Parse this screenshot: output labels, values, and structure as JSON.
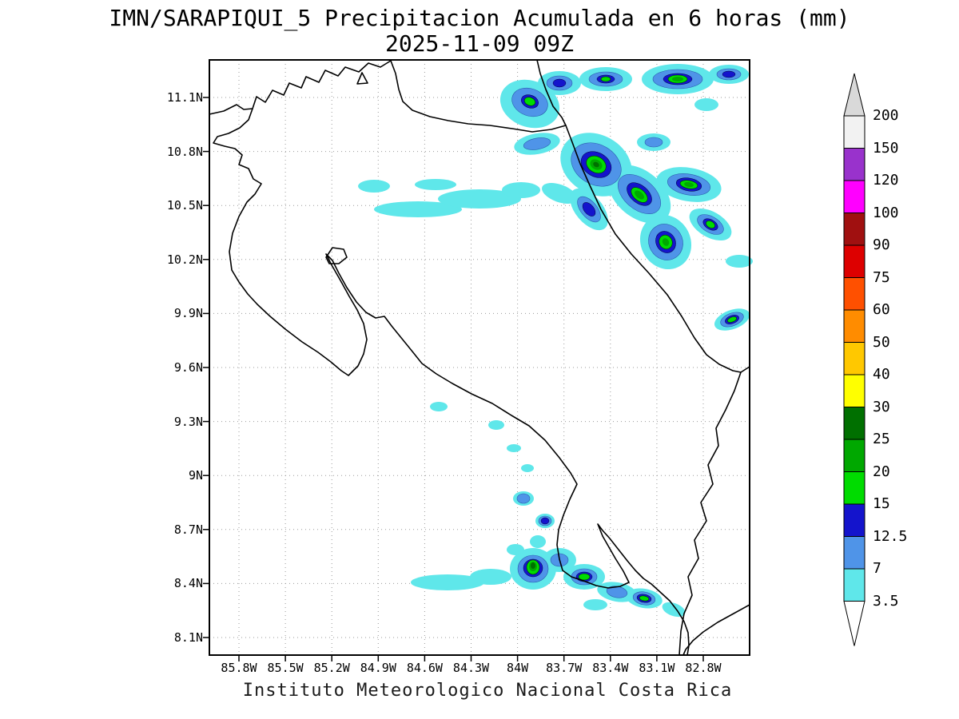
{
  "header": {
    "title": "IMN/SARAPIQUI_5 Precipitacion Acumulada en 6 horas (mm)",
    "datetime": "2025-11-09 09Z"
  },
  "axes": {
    "x_tick_labels": [
      "85.8W",
      "85.5W",
      "85.2W",
      "84.9W",
      "84.6W",
      "84.3W",
      "84W",
      "83.7W",
      "83.4W",
      "83.1W",
      "82.8W"
    ],
    "y_tick_labels": [
      "11.1N",
      "10.8N",
      "10.5N",
      "10.2N",
      "9.9N",
      "9.6N",
      "9.3N",
      "9N",
      "8.7N",
      "8.4N",
      "8.1N"
    ]
  },
  "colorbar": {
    "tick_labels": [
      "200",
      "150",
      "120",
      "100",
      "90",
      "75",
      "60",
      "50",
      "40",
      "30",
      "25",
      "20",
      "15",
      "12.5",
      "7",
      "3.5"
    ],
    "cells_top_to_bottom": [
      "#f2f2f2",
      "#9932cc",
      "#ff00ff",
      "#a01010",
      "#dd0000",
      "#ff5000",
      "#ff8c00",
      "#ffc800",
      "#ffff00",
      "#007000",
      "#00a800",
      "#00dc00",
      "#1414cc",
      "#4f94e8",
      "#5fe7ea"
    ],
    "over_triangle": "#d9d9d9",
    "under_triangle": "#ffffff"
  },
  "footer": {
    "caption": "Instituto Meteorologico Nacional Costa Rica"
  },
  "chart_data": {
    "type": "heatmap",
    "title": "IMN/SARAPIQUI_5 Precipitacion Acumulada en 6 horas (mm)",
    "subtitle": "2025-11-09 09Z",
    "units": "mm",
    "region": "Costa Rica",
    "x_axis": {
      "quantity": "longitude",
      "tick_labels": [
        "85.8W",
        "85.5W",
        "85.2W",
        "84.9W",
        "84.6W",
        "84.3W",
        "84W",
        "83.7W",
        "83.4W",
        "83.1W",
        "82.8W"
      ],
      "approx_range_deg_W": [
        86.0,
        82.5
      ]
    },
    "y_axis": {
      "quantity": "latitude",
      "tick_labels": [
        "11.1N",
        "10.8N",
        "10.5N",
        "10.2N",
        "9.9N",
        "9.6N",
        "9.3N",
        "9N",
        "8.7N",
        "8.4N",
        "8.1N"
      ],
      "approx_range_deg_N": [
        8.0,
        11.3
      ]
    },
    "contour_levels_mm": [
      3.5,
      7,
      12.5,
      15,
      20,
      25,
      30,
      40,
      50,
      60,
      75,
      90,
      100,
      120,
      150,
      200
    ],
    "level_colors_low_to_high": [
      "#5fe7ea",
      "#4f94e8",
      "#1414cc",
      "#00dc00",
      "#00a800",
      "#007000",
      "#ffff00",
      "#ffc800",
      "#ff8c00",
      "#ff5000",
      "#dd0000",
      "#a01010",
      "#ff00ff",
      "#9932cc",
      "#f2f2f2"
    ],
    "grid": "dotted",
    "legend_position": "right",
    "precipitation_clusters": [
      {
        "area": "Northern Caribbean / Nicaragua border zone, 10.3N-11.3N x 82.7W-84.6W",
        "peak_band_mm": "25-30"
      },
      {
        "area": "Thin east-west light bands over northern plains near 10.4N-10.6N, 84.2W-85.1W",
        "peak_band_mm": "3.5-7"
      },
      {
        "area": "South Caribbean coast cell near 9.9N 82.65W",
        "peak_band_mm": "15-20"
      },
      {
        "area": "Southern Pacific / Osa Peninsula and Golfo Dulce, 8.3N-8.9N x 82.9W-84.4W",
        "peak_band_mm": "25-30"
      },
      {
        "area": "Scattered light cells on central Pacific slope 9.0N-9.4N, 84W-84.5W",
        "peak_band_mm": "3.5-7"
      }
    ]
  }
}
